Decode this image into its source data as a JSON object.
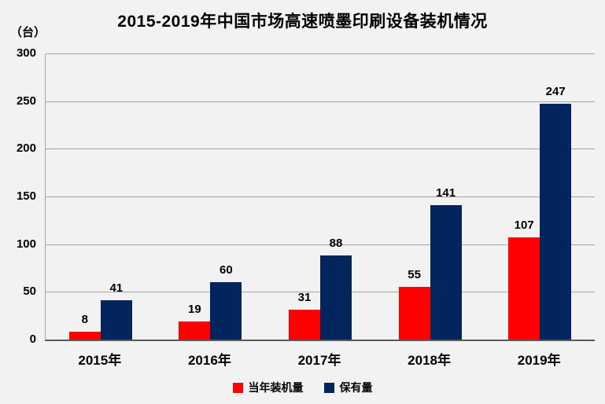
{
  "chart_data": {
    "type": "bar",
    "title": "2015-2019年中国市场高速喷墨印刷设备装机情况",
    "ylabel": "（台）",
    "xlabel": "",
    "categories": [
      "2015年",
      "2016年",
      "2017年",
      "2018年",
      "2019年"
    ],
    "series": [
      {
        "key": "annual-installations",
        "name": "当年装机量",
        "color": "#ff0000",
        "values": [
          8,
          19,
          31,
          55,
          107
        ]
      },
      {
        "key": "installed-base",
        "name": "保有量",
        "color": "#02255e",
        "values": [
          41,
          60,
          88,
          141,
          247
        ]
      }
    ],
    "ylim": [
      0,
      300
    ],
    "yticks": [
      "0",
      "50",
      "100",
      "150",
      "200",
      "250",
      "300"
    ],
    "grid": true,
    "data_labels": true,
    "legend_position": "bottom"
  },
  "colors": {
    "background": "#f2f2f2",
    "gridline": "#a6a6a6",
    "axis": "#595959",
    "text": "#000000"
  }
}
